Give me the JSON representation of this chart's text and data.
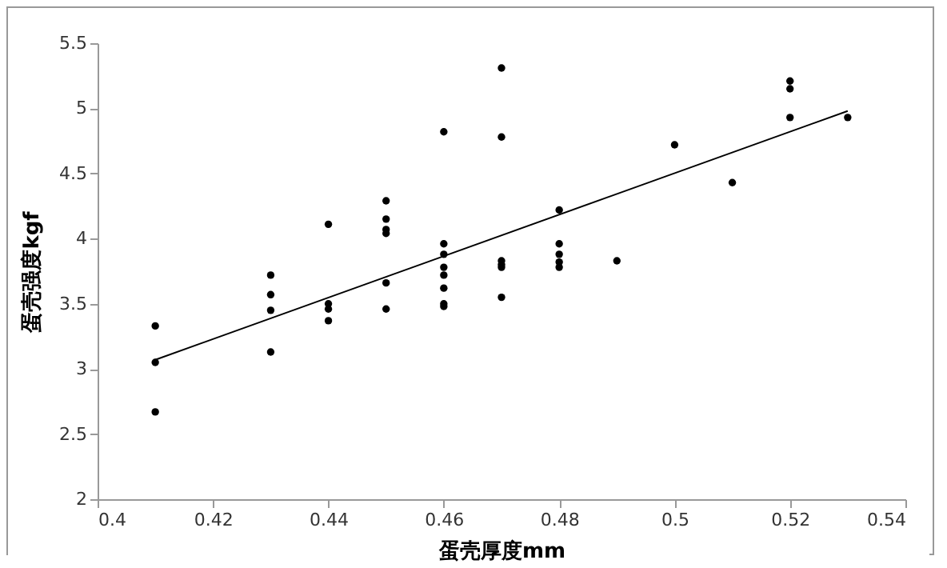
{
  "chart_data": {
    "type": "scatter",
    "xlabel": "蛋壳厚度mm",
    "ylabel": "蛋壳强度kgf",
    "grid": false,
    "xlim": [
      0.4,
      0.54
    ],
    "xticks": [
      0.4,
      0.42,
      0.44,
      0.46,
      0.48,
      0.5,
      0.52,
      0.54
    ],
    "ylim": [
      2,
      5.5
    ],
    "yticks": [
      2,
      2.5,
      3,
      3.5,
      4,
      4.5,
      5,
      5.5
    ],
    "series": [
      {
        "color": "#000000",
        "marker": "circle",
        "x": [
          0.41,
          0.41,
          0.41,
          0.43,
          0.43,
          0.43,
          0.43,
          0.44,
          0.44,
          0.44,
          0.44,
          0.45,
          0.45,
          0.45,
          0.45,
          0.45,
          0.45,
          0.46,
          0.46,
          0.46,
          0.46,
          0.46,
          0.46,
          0.46,
          0.46,
          0.47,
          0.47,
          0.47,
          0.47,
          0.47,
          0.47,
          0.48,
          0.48,
          0.48,
          0.48,
          0.48,
          0.49,
          0.5,
          0.51,
          0.52,
          0.52,
          0.52,
          0.53
        ],
        "values": [
          3.33,
          3.05,
          2.67,
          3.72,
          3.57,
          3.45,
          3.13,
          4.11,
          3.5,
          3.46,
          3.37,
          4.29,
          4.15,
          4.07,
          4.04,
          3.66,
          3.46,
          4.82,
          3.96,
          3.88,
          3.78,
          3.72,
          3.62,
          3.5,
          3.48,
          5.31,
          4.78,
          3.83,
          3.8,
          3.78,
          3.55,
          4.22,
          3.96,
          3.88,
          3.82,
          3.78,
          3.83,
          4.72,
          4.43,
          5.21,
          5.15,
          4.93,
          4.93
        ]
      },
      {
        "type": "line",
        "color": "#000000",
        "x": [
          0.41,
          0.53
        ],
        "values": [
          3.07,
          4.98
        ]
      }
    ]
  }
}
